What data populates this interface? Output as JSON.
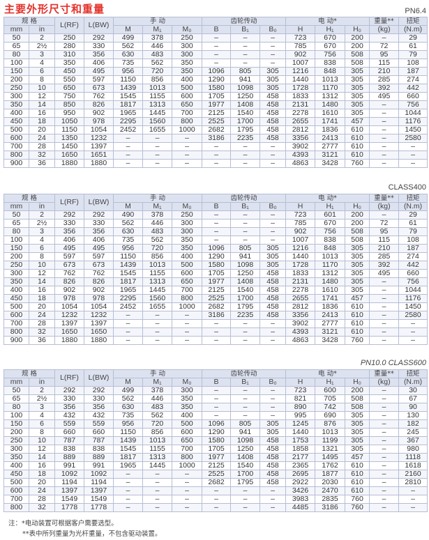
{
  "title": "主要外形尺寸和重量",
  "headers": {
    "spec": "规 格",
    "mm": "mm",
    "in": "in",
    "lrf": "L(RF)",
    "lbw": "L(BW)",
    "manual": "手 动",
    "m": "M",
    "m1": "M₁",
    "m0": "M₀",
    "gear": "齿轮传动",
    "b": "B",
    "b1": "B₁",
    "b0": "B₀",
    "electric": "电 动*",
    "h": "H",
    "h1": "H₁",
    "h0": "H₀",
    "weight": "重量**",
    "kg": "(kg)",
    "torque": "扭矩",
    "nm": "(N.m)"
  },
  "colors": {
    "title": "#e4322b",
    "header_bg": "#dde2f0",
    "border": "#b6bdd4"
  },
  "tables": [
    {
      "label": "PN6.4",
      "rows": [
        [
          "50",
          "2",
          "250",
          "292",
          "499",
          "378",
          "250",
          "–",
          "–",
          "–",
          "723",
          "670",
          "200",
          "–",
          "29"
        ],
        [
          "65",
          "2½",
          "280",
          "330",
          "562",
          "446",
          "300",
          "–",
          "–",
          "–",
          "785",
          "670",
          "200",
          "72",
          "61"
        ],
        [
          "80",
          "3",
          "310",
          "356",
          "630",
          "483",
          "300",
          "–",
          "–",
          "–",
          "902",
          "756",
          "508",
          "95",
          "79"
        ],
        [
          "100",
          "4",
          "350",
          "406",
          "735",
          "562",
          "350",
          "–",
          "–",
          "–",
          "1007",
          "838",
          "508",
          "115",
          "108"
        ],
        [
          "150",
          "6",
          "450",
          "495",
          "956",
          "720",
          "350",
          "1096",
          "805",
          "305",
          "1216",
          "848",
          "305",
          "210",
          "187"
        ],
        [
          "200",
          "8",
          "550",
          "597",
          "1150",
          "856",
          "400",
          "1290",
          "941",
          "305",
          "1440",
          "1013",
          "305",
          "285",
          "274"
        ],
        [
          "250",
          "10",
          "650",
          "673",
          "1439",
          "1013",
          "500",
          "1580",
          "1098",
          "305",
          "1728",
          "1170",
          "305",
          "392",
          "442"
        ],
        [
          "300",
          "12",
          "750",
          "762",
          "1545",
          "1155",
          "600",
          "1705",
          "1250",
          "458",
          "1833",
          "1312",
          "305",
          "495",
          "660"
        ],
        [
          "350",
          "14",
          "850",
          "826",
          "1817",
          "1313",
          "650",
          "1977",
          "1408",
          "458",
          "2131",
          "1480",
          "305",
          "–",
          "756"
        ],
        [
          "400",
          "16",
          "950",
          "902",
          "1965",
          "1445",
          "700",
          "2125",
          "1540",
          "458",
          "2278",
          "1610",
          "305",
          "–",
          "1044"
        ],
        [
          "450",
          "18",
          "1050",
          "978",
          "2295",
          "1560",
          "800",
          "2525",
          "1700",
          "458",
          "2655",
          "1741",
          "457",
          "–",
          "1176"
        ],
        [
          "500",
          "20",
          "1150",
          "1054",
          "2452",
          "1655",
          "1000",
          "2682",
          "1795",
          "458",
          "2812",
          "1836",
          "610",
          "–",
          "1450"
        ],
        [
          "600",
          "24",
          "1350",
          "1232",
          "–",
          "–",
          "–",
          "3186",
          "2235",
          "458",
          "3356",
          "2413",
          "610",
          "–",
          "2580"
        ],
        [
          "700",
          "28",
          "1450",
          "1397",
          "–",
          "–",
          "–",
          "–",
          "–",
          "–",
          "3902",
          "2777",
          "610",
          "–",
          "–"
        ],
        [
          "800",
          "32",
          "1650",
          "1651",
          "–",
          "–",
          "–",
          "–",
          "–",
          "–",
          "4393",
          "3121",
          "610",
          "–",
          "–"
        ],
        [
          "900",
          "36",
          "1880",
          "1880",
          "–",
          "–",
          "–",
          "–",
          "–",
          "–",
          "4863",
          "3428",
          "760",
          "–",
          "–"
        ]
      ]
    },
    {
      "label": "CLASS400",
      "rows": [
        [
          "50",
          "2",
          "292",
          "292",
          "490",
          "378",
          "250",
          "–",
          "–",
          "–",
          "723",
          "601",
          "200",
          "–",
          "29"
        ],
        [
          "65",
          "2½",
          "330",
          "330",
          "562",
          "446",
          "300",
          "–",
          "–",
          "–",
          "785",
          "670",
          "200",
          "72",
          "61"
        ],
        [
          "80",
          "3",
          "356",
          "356",
          "630",
          "483",
          "300",
          "–",
          "–",
          "–",
          "902",
          "756",
          "508",
          "95",
          "79"
        ],
        [
          "100",
          "4",
          "406",
          "406",
          "735",
          "562",
          "350",
          "–",
          "–",
          "–",
          "1007",
          "838",
          "508",
          "115",
          "108"
        ],
        [
          "150",
          "6",
          "495",
          "495",
          "956",
          "720",
          "350",
          "1096",
          "805",
          "305",
          "1216",
          "848",
          "305",
          "210",
          "187"
        ],
        [
          "200",
          "8",
          "597",
          "597",
          "1150",
          "856",
          "400",
          "1290",
          "941",
          "305",
          "1440",
          "1013",
          "305",
          "285",
          "274"
        ],
        [
          "250",
          "10",
          "673",
          "673",
          "1439",
          "1013",
          "500",
          "1580",
          "1098",
          "305",
          "1728",
          "1170",
          "305",
          "392",
          "442"
        ],
        [
          "300",
          "12",
          "762",
          "762",
          "1545",
          "1155",
          "600",
          "1705",
          "1250",
          "458",
          "1833",
          "1312",
          "305",
          "495",
          "660"
        ],
        [
          "350",
          "14",
          "826",
          "826",
          "1817",
          "1313",
          "650",
          "1977",
          "1408",
          "458",
          "2131",
          "1480",
          "305",
          "–",
          "756"
        ],
        [
          "400",
          "16",
          "902",
          "902",
          "1965",
          "1445",
          "700",
          "2125",
          "1540",
          "458",
          "2278",
          "1610",
          "305",
          "–",
          "1044"
        ],
        [
          "450",
          "18",
          "978",
          "978",
          "2295",
          "1560",
          "800",
          "2525",
          "1700",
          "458",
          "2655",
          "1741",
          "457",
          "–",
          "1176"
        ],
        [
          "500",
          "20",
          "1054",
          "1054",
          "2452",
          "1655",
          "1000",
          "2682",
          "1795",
          "458",
          "2812",
          "1836",
          "610",
          "–",
          "1450"
        ],
        [
          "600",
          "24",
          "1232",
          "1232",
          "–",
          "–",
          "–",
          "3186",
          "2235",
          "458",
          "3356",
          "2413",
          "610",
          "–",
          "2580"
        ],
        [
          "700",
          "28",
          "1397",
          "1397",
          "–",
          "–",
          "–",
          "–",
          "–",
          "–",
          "3902",
          "2777",
          "610",
          "–",
          "–"
        ],
        [
          "800",
          "32",
          "1650",
          "1650",
          "–",
          "–",
          "–",
          "–",
          "–",
          "–",
          "4393",
          "3121",
          "610",
          "–",
          "–"
        ],
        [
          "900",
          "36",
          "1880",
          "1880",
          "–",
          "–",
          "–",
          "–",
          "–",
          "–",
          "4863",
          "3428",
          "760",
          "–",
          "–"
        ]
      ]
    },
    {
      "label": "PN10.0  CLASS600",
      "rows": [
        [
          "50",
          "2",
          "292",
          "292",
          "499",
          "378",
          "300",
          "–",
          "–",
          "–",
          "723",
          "600",
          "200",
          "–",
          "30"
        ],
        [
          "65",
          "2½",
          "330",
          "330",
          "562",
          "446",
          "350",
          "–",
          "–",
          "–",
          "821",
          "705",
          "508",
          "–",
          "67"
        ],
        [
          "80",
          "3",
          "356",
          "356",
          "630",
          "483",
          "350",
          "–",
          "–",
          "–",
          "890",
          "742",
          "508",
          "–",
          "90"
        ],
        [
          "100",
          "4",
          "432",
          "432",
          "735",
          "562",
          "400",
          "–",
          "–",
          "–",
          "995",
          "690",
          "305",
          "–",
          "130"
        ],
        [
          "150",
          "6",
          "559",
          "559",
          "956",
          "720",
          "500",
          "1096",
          "805",
          "305",
          "1245",
          "876",
          "305",
          "–",
          "182"
        ],
        [
          "200",
          "8",
          "660",
          "660",
          "1150",
          "856",
          "600",
          "1290",
          "941",
          "305",
          "1440",
          "1013",
          "305",
          "–",
          "245"
        ],
        [
          "250",
          "10",
          "787",
          "787",
          "1439",
          "1013",
          "650",
          "1580",
          "1098",
          "458",
          "1753",
          "1199",
          "305",
          "–",
          "367"
        ],
        [
          "300",
          "12",
          "838",
          "838",
          "1545",
          "1155",
          "700",
          "1705",
          "1250",
          "458",
          "1858",
          "1321",
          "305",
          "–",
          "980"
        ],
        [
          "350",
          "14",
          "889",
          "889",
          "1817",
          "1313",
          "800",
          "1977",
          "1408",
          "458",
          "2177",
          "1495",
          "457",
          "–",
          "1118"
        ],
        [
          "400",
          "16",
          "991",
          "991",
          "1965",
          "1445",
          "1000",
          "2125",
          "1540",
          "458",
          "2365",
          "1762",
          "610",
          "–",
          "1618"
        ],
        [
          "450",
          "18",
          "1092",
          "1092",
          "–",
          "–",
          "–",
          "2525",
          "1700",
          "458",
          "2695",
          "1877",
          "610",
          "–",
          "2160"
        ],
        [
          "500",
          "20",
          "1194",
          "1194",
          "–",
          "–",
          "–",
          "2682",
          "1795",
          "458",
          "2922",
          "2030",
          "610",
          "–",
          "2810"
        ],
        [
          "600",
          "24",
          "1397",
          "1397",
          "–",
          "–",
          "–",
          "–",
          "–",
          "–",
          "3426",
          "2470",
          "610",
          "–",
          "–"
        ],
        [
          "700",
          "28",
          "1549",
          "1549",
          "–",
          "–",
          "–",
          "–",
          "–",
          "–",
          "3983",
          "2835",
          "760",
          "–",
          "–"
        ],
        [
          "800",
          "32",
          "1778",
          "1778",
          "–",
          "–",
          "–",
          "–",
          "–",
          "–",
          "4485",
          "3186",
          "760",
          "–",
          "–"
        ]
      ]
    }
  ],
  "notes": [
    "注：*电动装置可根据客户需要选型。",
    "**表中所列重量为光杆重量，不包含驱动装置。"
  ]
}
